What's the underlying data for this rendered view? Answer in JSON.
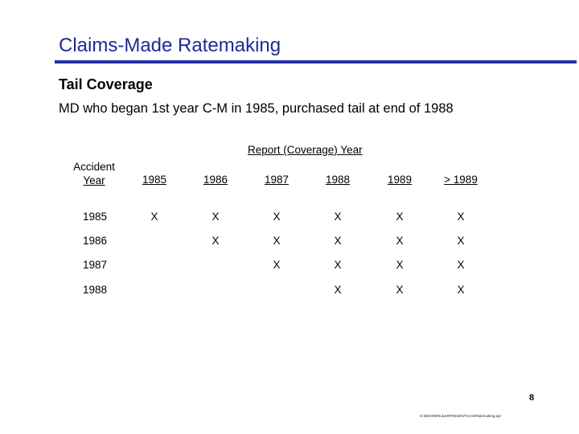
{
  "slide": {
    "title": "Claims-Made Ratemaking",
    "heading": "Tail Coverage",
    "subtitle": "MD who began 1st year C-M in 1985, purchased tail at end of 1988"
  },
  "table": {
    "group_header": "Report (Coverage) Year",
    "corner_line1": "Accident",
    "corner_line2": "Year",
    "columns": [
      "1985",
      "1986",
      "1987",
      "1988",
      "1989",
      "> 1989"
    ],
    "rows": [
      {
        "year": "1985",
        "cells": [
          "X",
          "X",
          "X",
          "X",
          "X",
          "X"
        ]
      },
      {
        "year": "1986",
        "cells": [
          "",
          "X",
          "X",
          "X",
          "X",
          "X"
        ]
      },
      {
        "year": "1987",
        "cells": [
          "",
          "",
          "X",
          "X",
          "X",
          "X"
        ]
      },
      {
        "year": "1988",
        "cells": [
          "",
          "",
          "",
          "X",
          "X",
          "X"
        ]
      }
    ]
  },
  "footer": {
    "page_number": "8",
    "path": "G:\\DEGREN\\JLM\\PRESENT\\CAS\\Ratemaking.ppt"
  },
  "colors": {
    "title": "#1f2a9a",
    "rule": "#2330a6"
  }
}
